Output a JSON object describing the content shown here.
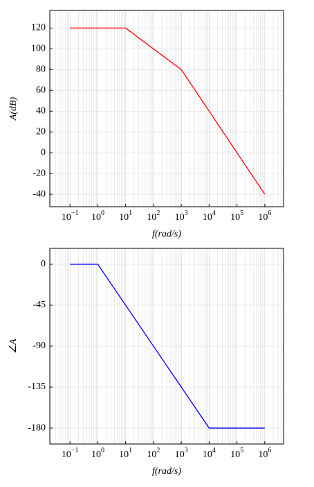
{
  "chart_data": [
    {
      "type": "line",
      "xlabel": "f(rad/s)",
      "ylabel": "A(dB)",
      "log_x": true,
      "grid": true,
      "x": [
        0.1,
        10,
        1000,
        1000000
      ],
      "series": [
        {
          "color": "#ff0000",
          "values": [
            120,
            120,
            80,
            -40
          ]
        }
      ],
      "xlim": [
        0.0188,
        4730000
      ],
      "ylim": [
        -52,
        137
      ],
      "xticks": [
        {
          "value": 0.1,
          "label": "10",
          "exponent": "−1"
        },
        {
          "value": 1,
          "label": "10",
          "exponent": "0"
        },
        {
          "value": 10,
          "label": "10",
          "exponent": "1"
        },
        {
          "value": 100,
          "label": "10",
          "exponent": "2"
        },
        {
          "value": 1000,
          "label": "10",
          "exponent": "3"
        },
        {
          "value": 10000,
          "label": "10",
          "exponent": "4"
        },
        {
          "value": 100000,
          "label": "10",
          "exponent": "5"
        },
        {
          "value": 1000000,
          "label": "10",
          "exponent": "6"
        }
      ],
      "yticks": [
        {
          "value": -40,
          "label": "-40"
        },
        {
          "value": -20,
          "label": "-20"
        },
        0,
        20,
        40,
        60,
        80,
        100,
        120
      ]
    },
    {
      "type": "line",
      "xlabel": "f(rad/s)",
      "ylabel": "∠A",
      "log_x": true,
      "grid": true,
      "x": [
        0.1,
        1,
        10000,
        1000000
      ],
      "series": [
        {
          "color": "#0000ff",
          "values": [
            0,
            0,
            -180,
            -180
          ]
        }
      ],
      "xlim": [
        0.0188,
        4730000
      ],
      "ylim": [
        -197.5,
        17.5
      ],
      "xticks": [
        {
          "value": 0.1,
          "label": "10",
          "exponent": "−1"
        },
        {
          "value": 1,
          "label": "10",
          "exponent": "0"
        },
        {
          "value": 10,
          "label": "10",
          "exponent": "1"
        },
        {
          "value": 100,
          "label": "10",
          "exponent": "2"
        },
        {
          "value": 1000,
          "label": "10",
          "exponent": "3"
        },
        {
          "value": 10000,
          "label": "10",
          "exponent": "4"
        },
        {
          "value": 100000,
          "label": "10",
          "exponent": "5"
        },
        {
          "value": 1000000,
          "label": "10",
          "exponent": "6"
        }
      ],
      "yticks": [
        {
          "value": -180,
          "label": "-180"
        },
        {
          "value": -135,
          "label": "-135"
        },
        {
          "value": -90,
          "label": "-90"
        },
        {
          "value": -45,
          "label": "-45"
        },
        0
      ]
    }
  ]
}
